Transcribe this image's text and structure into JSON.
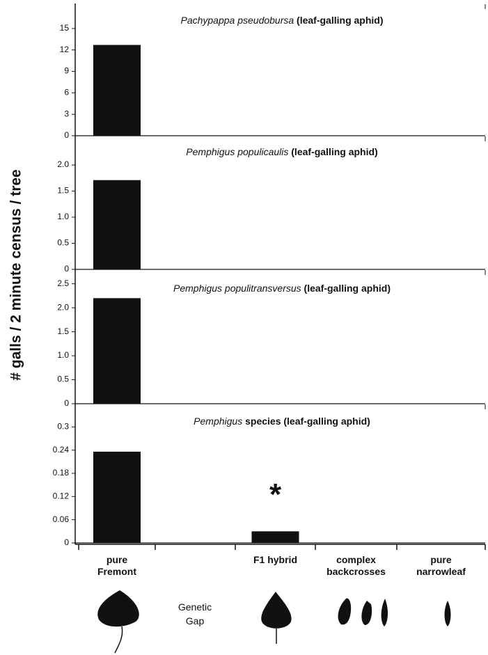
{
  "y_label": "# galls / 2 minute census / tree",
  "x_axis": {
    "categories": [
      "pure\nFremont",
      null,
      "F1 hybrid",
      "complex\nbackcrosses",
      "pure\nnarrowleaf"
    ],
    "gap_label": "Genetic\nGap"
  },
  "chart_data": [
    {
      "type": "bar",
      "title_species": "Pachypappa pseudobursa",
      "title_rest": " (leaf-galling aphid)",
      "values": [
        12.7,
        null,
        0,
        0,
        0
      ],
      "color": "#111111",
      "ylim": [
        0,
        18.5
      ],
      "yticks": [
        0,
        3,
        6,
        9,
        12,
        15
      ]
    },
    {
      "type": "bar",
      "title_species": "Pemphigus populicaulis",
      "title_rest": " (leaf-galling aphid)",
      "values": [
        1.71,
        null,
        0,
        0,
        0
      ],
      "color": "#111111",
      "ylim": [
        0,
        2.56
      ],
      "yticks": [
        0,
        0.5,
        {
          "value": 1,
          "label": "1.0"
        },
        1.5,
        {
          "value": 2,
          "label": "2.0"
        }
      ]
    },
    {
      "type": "bar",
      "title_species": "Pemphigus populitransversus",
      "title_rest": " (leaf-galling aphid)",
      "values": [
        2.2,
        null,
        0,
        0,
        0
      ],
      "color": "#111111",
      "ylim": [
        0,
        2.8
      ],
      "yticks": [
        0,
        0.5,
        {
          "value": 1,
          "label": "1.0"
        },
        1.5,
        {
          "value": 2,
          "label": "2.0"
        },
        2.5
      ]
    },
    {
      "type": "bar",
      "title_species": "Pemphigus",
      "title_rest": " species (leaf-galling aphid)",
      "values": [
        0.236,
        null,
        0.03,
        0,
        0
      ],
      "color": "#111111",
      "ylim": [
        0,
        0.36
      ],
      "yticks": [
        0,
        0.06,
        0.12,
        0.18,
        0.24,
        0.3
      ],
      "annotation": "*",
      "annotation_index": 2
    }
  ]
}
